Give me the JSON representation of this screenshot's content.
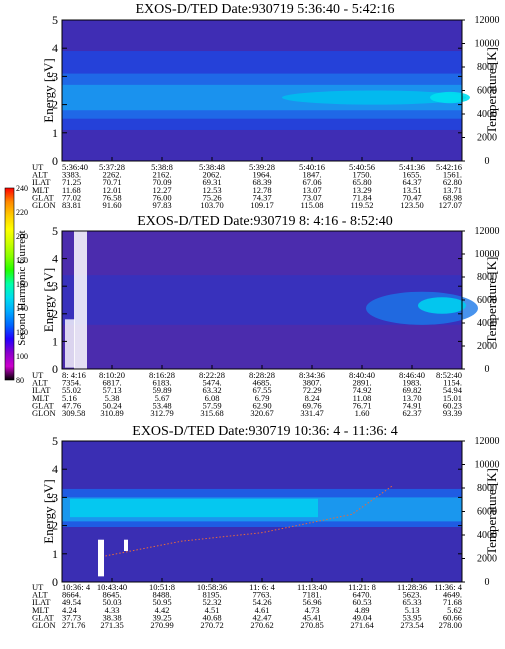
{
  "chart_data": {
    "type": "heatmap",
    "colorbar": {
      "label": "Second Harmonic Current",
      "ticks": [
        "80",
        "100",
        "120",
        "140",
        "160",
        "180",
        "200",
        "220",
        "240"
      ],
      "colors": [
        "#000000",
        "#cc00cc",
        "#8800cc",
        "#2200ff",
        "#0066ff",
        "#00aaff",
        "#00ddee",
        "#00ffaa",
        "#22ff00",
        "#88ff00",
        "#ccff00",
        "#ffff00",
        "#ffcc00",
        "#ff8800",
        "#ff0000"
      ]
    },
    "panels": [
      {
        "title": "EXOS-D/TED   Date:930719  5:36:40 - 5:42:16",
        "ylabel": "Energy [eV]",
        "y2label": "Temperature [K]",
        "ylim": [
          0,
          5
        ],
        "yticks": [
          "0",
          "1",
          "2",
          "3",
          "4",
          "5"
        ],
        "y2lim": [
          0,
          12000
        ],
        "y2ticks": [
          "0",
          "2000",
          "4000",
          "6000",
          "8000",
          "10000",
          "12000"
        ],
        "row_labels": [
          "UT",
          "ALT",
          "ILAT",
          "MLT",
          "GLAT",
          "GLON"
        ],
        "columns": [
          [
            "5:36:40",
            "3383.",
            "71.25",
            "11.68",
            "77.02",
            "83.81"
          ],
          [
            "5:37:28",
            "2262.",
            "70.71",
            "12.01",
            "76.58",
            "91.60"
          ],
          [
            "5:38:8",
            "2162.",
            "70.09",
            "12.27",
            "76.00",
            "97.83"
          ],
          [
            "5:38:48",
            "2062.",
            "69.31",
            "12.53",
            "75.26",
            "103.70"
          ],
          [
            "5:39:28",
            "1964.",
            "68.39",
            "12.78",
            "74.37",
            "109.17"
          ],
          [
            "5:40:16",
            "1847.",
            "67.06",
            "13.07",
            "73.07",
            "115.08"
          ],
          [
            "5:40:56",
            "1750.",
            "65.80",
            "13.29",
            "71.84",
            "119.52"
          ],
          [
            "5:41:36",
            "1655.",
            "64.37",
            "13.51",
            "70.47",
            "123.50"
          ],
          [
            "5:42:16",
            "1561.",
            "62.80",
            "13.71",
            "68.98",
            "127.07"
          ]
        ]
      },
      {
        "title": "EXOS-D/TED   Date:930719  8: 4:16 - 8:52:40",
        "ylabel": "Energy [eV]",
        "y2label": "Temperature [K]",
        "ylim": [
          0,
          5
        ],
        "yticks": [
          "0",
          "1",
          "2",
          "3",
          "4",
          "5"
        ],
        "y2lim": [
          0,
          12000
        ],
        "y2ticks": [
          "0",
          "2000",
          "4000",
          "6000",
          "8000",
          "10000",
          "12000"
        ],
        "row_labels": [
          "UT",
          "ALT",
          "ILAT",
          "MLT",
          "GLAT",
          "GLON"
        ],
        "columns": [
          [
            "8: 4:16",
            "7354.",
            "55.02",
            "5.16",
            "47.76",
            "309.58"
          ],
          [
            "8:10:20",
            "6817.",
            "57.13",
            "5.38",
            "50.24",
            "310.89"
          ],
          [
            "8:16:28",
            "6183.",
            "59.89",
            "5.67",
            "53.48",
            "312.79"
          ],
          [
            "8:22:28",
            "5474.",
            "63.32",
            "6.08",
            "57.59",
            "315.68"
          ],
          [
            "8:28:28",
            "4685.",
            "67.55",
            "6.79",
            "62.90",
            "320.67"
          ],
          [
            "8:34:36",
            "3807.",
            "72.29",
            "8.24",
            "69.76",
            "331.47"
          ],
          [
            "8:40:40",
            "2891.",
            "74.92",
            "11.08",
            "76.71",
            "1.60"
          ],
          [
            "8:46:40",
            "1983.",
            "69.82",
            "13.70",
            "74.91",
            "62.37"
          ],
          [
            "8:52:40",
            "1154.",
            "54.94",
            "15.01",
            "60.23",
            "93.39"
          ]
        ]
      },
      {
        "title": "EXOS-D/TED   Date:930719  10:36: 4 - 11:36: 4",
        "ylabel": "Energy [eV]",
        "y2label": "Temperature [K]",
        "ylim": [
          0,
          5
        ],
        "yticks": [
          "0",
          "1",
          "2",
          "3",
          "4",
          "5"
        ],
        "y2lim": [
          0,
          12000
        ],
        "y2ticks": [
          "0",
          "2000",
          "4000",
          "6000",
          "8000",
          "10000",
          "12000"
        ],
        "row_labels": [
          "UT",
          "ALT",
          "ILAT",
          "MLT",
          "GLAT",
          "GLON"
        ],
        "columns": [
          [
            "10:36: 4",
            "8664.",
            "49.54",
            "4.24",
            "37.73",
            "271.76"
          ],
          [
            "10:43:40",
            "8645.",
            "50.03",
            "4.33",
            "38.38",
            "271.35"
          ],
          [
            "10:51:8",
            "8488.",
            "50.95",
            "4.42",
            "39.25",
            "270.99"
          ],
          [
            "10:58:36",
            "8195.",
            "52.32",
            "4.51",
            "40.68",
            "270.72"
          ],
          [
            "11: 6: 4",
            "7763.",
            "54.26",
            "4.61",
            "42.47",
            "270.62"
          ],
          [
            "11:13:40",
            "7181.",
            "56.96",
            "4.73",
            "45.41",
            "270.85"
          ],
          [
            "11:21: 8",
            "6470.",
            "60.53",
            "4.89",
            "49.04",
            "271.64"
          ],
          [
            "11:28:36",
            "5623.",
            "65.33",
            "5.13",
            "53.95",
            "273.54"
          ],
          [
            "11:36: 4",
            "4649.",
            "71.68",
            "5.62",
            "60.66",
            "278.00"
          ]
        ]
      }
    ]
  }
}
